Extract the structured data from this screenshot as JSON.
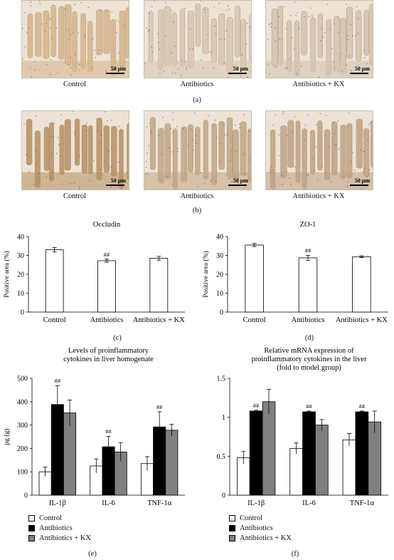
{
  "micrographs": {
    "row_a": [
      {
        "label": "Control",
        "scale": "50 μm",
        "tone": "#d7b489"
      },
      {
        "label": "Antibiotics",
        "scale": "50 μm",
        "tone": "#d9c6b0"
      },
      {
        "label": "Antibiotics + KX",
        "scale": "50 μm",
        "tone": "#d6c3ad"
      }
    ],
    "row_b": [
      {
        "label": "Control",
        "scale": "50 μm",
        "tone": "#b88f62"
      },
      {
        "label": "Antibiotics",
        "scale": "50 μm",
        "tone": "#c2a684"
      },
      {
        "label": "Antibiotics + KX",
        "scale": "50 μm",
        "tone": "#bfa384"
      }
    ]
  },
  "panel_labels": {
    "a": "(a)",
    "b": "(b)",
    "c": "(c)",
    "d": "(d)",
    "e": "(e)",
    "f": "(f)"
  },
  "legend": {
    "items": [
      {
        "label": "Control",
        "color": "#ffffff"
      },
      {
        "label": "Antibiotics",
        "color": "#000000"
      },
      {
        "label": "Antibiotics + KX",
        "color": "#808080"
      }
    ]
  },
  "chart_data": [
    {
      "id": "c",
      "type": "bar",
      "title": "Occludin",
      "ylabel": "Positive area (%)",
      "xlabel": "",
      "categories": [
        "Control",
        "Antibiotics",
        "Antibiotics + KX"
      ],
      "values": [
        33,
        27.2,
        28.5
      ],
      "errors": [
        1.2,
        0.8,
        1.0
      ],
      "annotations": [
        "",
        "##",
        ""
      ],
      "ylim": [
        0,
        40
      ],
      "yticks": [
        0,
        10,
        20,
        30,
        40
      ],
      "ytick_labels": [
        "0",
        "10",
        "20",
        "30",
        "40"
      ],
      "colors": [
        "#ffffff",
        "#ffffff",
        "#ffffff"
      ],
      "grid": false
    },
    {
      "id": "d",
      "type": "bar",
      "title": "ZO-1",
      "ylabel": "Positive area (%)",
      "xlabel": "",
      "categories": [
        "Control",
        "Antibiotics",
        "Antibiotics + KX"
      ],
      "values": [
        35.5,
        28.7,
        29.3
      ],
      "errors": [
        0.8,
        1.3,
        0.5
      ],
      "annotations": [
        "",
        "##",
        ""
      ],
      "ylim": [
        0,
        40
      ],
      "yticks": [
        0,
        10,
        20,
        30,
        40
      ],
      "ytick_labels": [
        "0",
        "10",
        "20",
        "30",
        "40"
      ],
      "colors": [
        "#ffffff",
        "#ffffff",
        "#ffffff"
      ],
      "grid": false
    },
    {
      "id": "e",
      "type": "bar",
      "title": "Levels of proinflammatory cytokines in liver homogenate",
      "title_lines": [
        "Levels of proinflammatory",
        "cytokines in liver homogenate"
      ],
      "ylabel": "pg (g)",
      "xlabel": "",
      "categories": [
        "IL-1β",
        "IL-6",
        "TNF-1α"
      ],
      "series": [
        {
          "name": "Control",
          "color": "#ffffff",
          "values": [
            100,
            125,
            135
          ],
          "errors": [
            20,
            30,
            30
          ]
        },
        {
          "name": "Antibiotics",
          "color": "#000000",
          "values": [
            388,
            207,
            292
          ],
          "errors": [
            80,
            45,
            65
          ]
        },
        {
          "name": "Antibiotics + KX",
          "color": "#808080",
          "values": [
            352,
            185,
            278
          ],
          "errors": [
            55,
            40,
            25
          ]
        }
      ],
      "annotations": [
        "##",
        "##",
        "##"
      ],
      "ylim": [
        0,
        500
      ],
      "yticks": [
        0,
        100,
        200,
        300,
        400,
        500
      ],
      "ytick_labels": [
        "0",
        "100",
        "200",
        "300",
        "400",
        "500"
      ],
      "grid": false
    },
    {
      "id": "f",
      "type": "bar",
      "title": "Relative mRNA expression of proinflammatory cytokines in the liver (fold to model group)",
      "title_lines": [
        "Relative mRNA expression of",
        "proinflammatory cytokines in the liver",
        "(fold to model group)"
      ],
      "ylabel": "",
      "xlabel": "",
      "categories": [
        "IL-1β",
        "IL-6",
        "TNF-1α"
      ],
      "series": [
        {
          "name": "Control",
          "color": "#ffffff",
          "values": [
            0.48,
            0.6,
            0.71
          ],
          "errors": [
            0.08,
            0.07,
            0.08
          ]
        },
        {
          "name": "Antibiotics",
          "color": "#000000",
          "values": [
            1.08,
            1.07,
            1.07
          ],
          "errors": [
            0.01,
            0.01,
            0.01
          ]
        },
        {
          "name": "Antibiotics + KX",
          "color": "#808080",
          "values": [
            1.2,
            0.9,
            0.94
          ],
          "errors": [
            0.16,
            0.07,
            0.14
          ]
        }
      ],
      "annotations": [
        "##",
        "##",
        "##"
      ],
      "ylim": [
        0,
        1.5
      ],
      "yticks": [
        0,
        0.5,
        1,
        1.5
      ],
      "ytick_labels": [
        "0",
        "0.5",
        "1",
        "1.5"
      ],
      "grid": false
    }
  ]
}
